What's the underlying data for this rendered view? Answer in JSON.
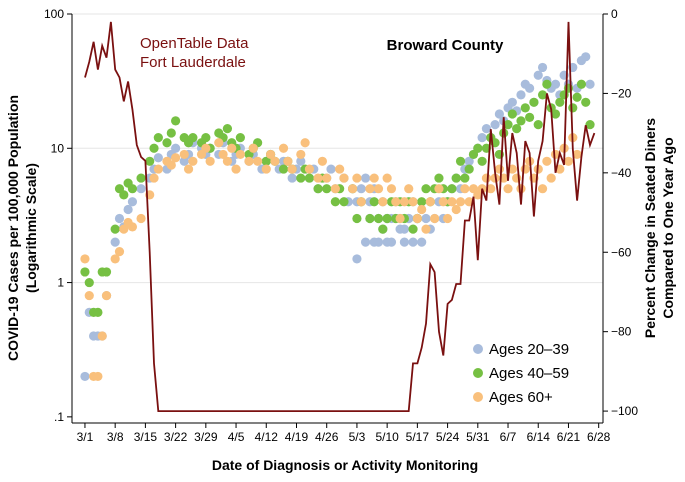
{
  "chart_data": {
    "type": "scatter",
    "title": "Broward County",
    "annotation": [
      "OpenTable Data",
      "Fort Lauderdale"
    ],
    "xlabel": "Date of Diagnosis or Activity Monitoring",
    "ylabel_left": [
      "COVID-19 Cases per 100,000 Population",
      "(Logarithmic Scale)"
    ],
    "ylabel_right": [
      "Percent Change in Seated Diners",
      "Compared to One Year Ago"
    ],
    "x_ticks": [
      "3/1",
      "3/8",
      "3/15",
      "3/22",
      "3/29",
      "4/5",
      "4/12",
      "4/19",
      "4/26",
      "5/3",
      "5/10",
      "5/17",
      "5/24",
      "5/31",
      "6/7",
      "6/14",
      "6/21",
      "6/28"
    ],
    "x_range_days": [
      -3,
      120
    ],
    "y_left_scale": "log",
    "y_left_range": [
      0.09,
      100
    ],
    "y_left_ticks": [
      {
        "value": 100,
        "label": "100"
      },
      {
        "value": 10,
        "label": "10"
      },
      {
        "value": 1,
        "label": "1"
      },
      {
        "value": 0.1,
        "label": ".1"
      }
    ],
    "y_right_range": [
      -103,
      0
    ],
    "y_right_ticks": [
      0,
      -20,
      -40,
      -60,
      -80,
      -100
    ],
    "grid": "horizontal at 100, 10, 1",
    "legend_position": "bottom-right",
    "colors": {
      "Ages 20–39": "#a8bcdc",
      "Ages 40–59": "#76c043",
      "Ages 60+": "#f9c07c",
      "line": "#7a1010"
    },
    "series": [
      {
        "name": "Ages 20–39",
        "values": [
          0.2,
          0.6,
          0.4,
          0.4,
          0.4,
          0.8,
          2.0,
          3.0,
          2.6,
          3.5,
          4.0,
          5.0,
          6.0,
          7.0,
          8.5,
          7.0,
          9.0,
          10.0,
          8.0,
          9.0,
          11.0,
          10.0,
          9.0,
          10.0,
          9.0,
          11.0,
          8.0,
          9.0,
          10.0,
          8.0,
          9.0,
          7.0,
          8.0,
          9.0,
          7.0,
          8.0,
          6.0,
          7.0,
          8.0,
          6.0,
          7.0,
          5.0,
          6.0,
          7.0,
          5.0,
          6.0,
          4.0,
          5.0,
          4.0,
          5.0,
          6.0,
          4.0,
          5.0,
          3.0,
          4.0,
          3.0,
          2.0,
          3.0,
          4.0,
          3.0,
          2.5,
          3.0,
          2.0,
          3.0,
          1.5,
          2.0,
          3.0,
          2.0,
          2.0,
          2.5,
          3.0,
          2.0,
          3.0,
          2.5,
          2.0,
          3.0,
          4.0,
          3.0,
          2.0,
          3.0,
          2.5,
          3.0,
          4.0,
          3.0,
          4.0,
          5.0,
          6.0,
          5.0,
          7.0,
          8.0,
          9.0,
          10.0,
          12.0,
          14.0,
          12.0,
          15.0,
          18.0,
          16.0,
          20.0,
          22.0,
          19.0,
          25.0,
          30.0,
          28.0,
          22.0,
          35.0,
          40.0,
          32.0,
          28.0,
          30.0,
          25.0,
          35.0,
          30.0,
          40.0,
          28.0,
          45.0,
          48.0,
          30.0
        ],
        "days": [
          0,
          1,
          2,
          3,
          4,
          5,
          7,
          8,
          9,
          10,
          11,
          13,
          15,
          16,
          17,
          19,
          20,
          21,
          23,
          24,
          25,
          27,
          28,
          29,
          31,
          32,
          34,
          35,
          36,
          38,
          39,
          41,
          42,
          43,
          45,
          46,
          48,
          49,
          50,
          52,
          53,
          54,
          56,
          57,
          58,
          60,
          61,
          62,
          63,
          64,
          65,
          66,
          67,
          68,
          69,
          70,
          70,
          71,
          72,
          73,
          74,
          75,
          76,
          77,
          63,
          65,
          66,
          67,
          68,
          69,
          70,
          71,
          72,
          73,
          74,
          75,
          76,
          77,
          78,
          79,
          80,
          81,
          82,
          83,
          84,
          85,
          86,
          87,
          88,
          89,
          90,
          91,
          92,
          93,
          94,
          95,
          96,
          97,
          98,
          99,
          100,
          101,
          102,
          103,
          104,
          105,
          106,
          107,
          108,
          109,
          110,
          111,
          112,
          113,
          114,
          115,
          116,
          117
        ]
      },
      {
        "name": "Ages 40–59",
        "values": [
          1.2,
          1.0,
          0.6,
          0.6,
          1.2,
          1.2,
          2.5,
          5.0,
          4.5,
          5.5,
          5.0,
          6.0,
          8.0,
          10.0,
          12.0,
          11.0,
          13.0,
          16.0,
          12.0,
          11.0,
          12.0,
          11.0,
          12.0,
          10.0,
          13.0,
          12.0,
          14.0,
          11.0,
          10.0,
          12.0,
          9.0,
          10.0,
          11.0,
          8.0,
          9.0,
          8.0,
          7.0,
          8.0,
          7.0,
          6.0,
          7.0,
          6.0,
          5.0,
          6.0,
          5.0,
          4.0,
          5.0,
          4.0,
          5.0,
          3.0,
          4.0,
          3.0,
          4.0,
          3.0,
          2.5,
          3.0,
          4.0,
          3.0,
          4.0,
          3.0,
          4.0,
          2.5,
          3.0,
          4.0,
          5.0,
          4.0,
          5.0,
          6.0,
          5.0,
          4.0,
          5.0,
          6.0,
          8.0,
          6.0,
          7.0,
          9.0,
          10.0,
          8.0,
          10.0,
          12.0,
          11.0,
          9.0,
          13.0,
          15.0,
          18.0,
          14.0,
          16.0,
          20.0,
          17.0,
          22.0,
          15.0,
          25.0,
          30.0,
          20.0,
          18.0,
          22.0,
          25.0,
          28.0,
          20.0,
          24.0,
          30.0,
          22.0,
          15.0
        ],
        "days": [
          0,
          1,
          2,
          3,
          4,
          5,
          7,
          8,
          9,
          10,
          11,
          13,
          15,
          16,
          17,
          19,
          20,
          21,
          23,
          24,
          25,
          27,
          28,
          29,
          31,
          32,
          33,
          34,
          35,
          36,
          38,
          39,
          40,
          42,
          43,
          44,
          46,
          47,
          48,
          50,
          51,
          52,
          54,
          55,
          56,
          58,
          59,
          60,
          62,
          63,
          64,
          66,
          67,
          68,
          69,
          70,
          71,
          72,
          73,
          74,
          75,
          76,
          77,
          78,
          79,
          80,
          81,
          82,
          83,
          84,
          85,
          86,
          87,
          88,
          89,
          90,
          91,
          92,
          93,
          94,
          95,
          96,
          97,
          98,
          99,
          100,
          101,
          102,
          103,
          104,
          105,
          106,
          107,
          108,
          109,
          110,
          111,
          112,
          113,
          114,
          115,
          116,
          117
        ]
      },
      {
        "name": "Ages 60+",
        "values": [
          1.5,
          0.8,
          0.2,
          0.2,
          0.4,
          0.8,
          1.5,
          1.7,
          2.5,
          2.8,
          2.6,
          3.0,
          4.5,
          6.0,
          7.0,
          8.0,
          7.5,
          8.5,
          9.0,
          7.0,
          8.0,
          9.0,
          10.0,
          8.0,
          11.0,
          9.0,
          8.0,
          10.0,
          7.0,
          9.0,
          8.0,
          10.0,
          8.0,
          7.0,
          9.0,
          8.0,
          10.0,
          8.0,
          7.0,
          9.0,
          11.0,
          7.0,
          6.0,
          8.0,
          6.0,
          5.0,
          7.0,
          6.0,
          5.0,
          6.0,
          4.0,
          5.0,
          6.0,
          5.0,
          4.0,
          6.0,
          5.0,
          4.0,
          3.0,
          4.0,
          5.0,
          4.0,
          3.0,
          3.5,
          2.5,
          4.0,
          3.0,
          5.0,
          4.0,
          3.0,
          4.0,
          3.5,
          4.0,
          5.0,
          4.0,
          5.0,
          4.5,
          5.0,
          6.0,
          5.0,
          6.0,
          7.0,
          6.0,
          5.0,
          7.0,
          6.0,
          5.0,
          7.0,
          8.0,
          6.0,
          7.0,
          5.0,
          8.0,
          6.0,
          9.0,
          7.0,
          10.0,
          8.0,
          12.0,
          9.0
        ],
        "days": [
          0,
          1,
          2,
          3,
          4,
          5,
          7,
          8,
          9,
          10,
          11,
          13,
          15,
          16,
          17,
          19,
          20,
          21,
          23,
          24,
          25,
          27,
          28,
          29,
          31,
          32,
          33,
          34,
          35,
          36,
          38,
          39,
          40,
          42,
          43,
          44,
          46,
          47,
          48,
          50,
          51,
          52,
          54,
          55,
          56,
          58,
          59,
          60,
          62,
          63,
          64,
          66,
          67,
          68,
          69,
          70,
          71,
          72,
          73,
          74,
          75,
          76,
          77,
          78,
          79,
          80,
          81,
          82,
          83,
          84,
          85,
          86,
          87,
          88,
          89,
          90,
          91,
          92,
          93,
          94,
          95,
          96,
          97,
          98,
          99,
          100,
          101,
          102,
          103,
          104,
          105,
          106,
          107,
          108,
          109,
          110,
          111,
          112,
          113,
          114
        ]
      }
    ],
    "line_series": {
      "name": "OpenTable Data Fort Lauderdale",
      "axis": "right",
      "days": [
        0,
        1,
        2,
        3,
        4,
        5,
        6,
        7,
        8,
        9,
        10,
        11,
        12,
        13,
        14,
        15,
        16,
        17,
        18,
        19,
        20,
        30,
        40,
        50,
        60,
        70,
        75,
        76,
        77,
        78,
        79,
        80,
        81,
        82,
        83,
        84,
        85,
        86,
        87,
        88,
        89,
        90,
        91,
        92,
        93,
        94,
        95,
        96,
        97,
        98,
        99,
        100,
        101,
        102,
        103,
        104,
        105,
        106,
        107,
        108,
        109,
        110,
        111,
        112,
        113,
        114,
        115,
        116,
        117,
        118
      ],
      "values": [
        -16,
        -12,
        -7,
        -14,
        -8,
        -11,
        -2,
        -14,
        -16,
        -22,
        -17,
        -24,
        -33,
        -36,
        -37,
        -60,
        -88,
        -100,
        -100,
        -100,
        -100,
        -100,
        -100,
        -100,
        -100,
        -100,
        -100,
        -88,
        -88,
        -84,
        -78,
        -63,
        -65,
        -80,
        -86,
        -73,
        -72,
        -68,
        -68,
        -52,
        -52,
        -46,
        -62,
        -44,
        -47,
        -29,
        -40,
        -48,
        -26,
        -42,
        -30,
        -35,
        -48,
        -32,
        -35,
        -51,
        -37,
        -32,
        -20,
        -24,
        -40,
        -35,
        -38,
        -2,
        -34,
        -47,
        -36,
        -28,
        -33,
        -30
      ]
    },
    "legend": [
      {
        "label": "Ages 20–39",
        "color": "#a8bcdc"
      },
      {
        "label": "Ages 40–59",
        "color": "#76c043"
      },
      {
        "label": "Ages 60+",
        "color": "#f9c07c"
      }
    ]
  }
}
